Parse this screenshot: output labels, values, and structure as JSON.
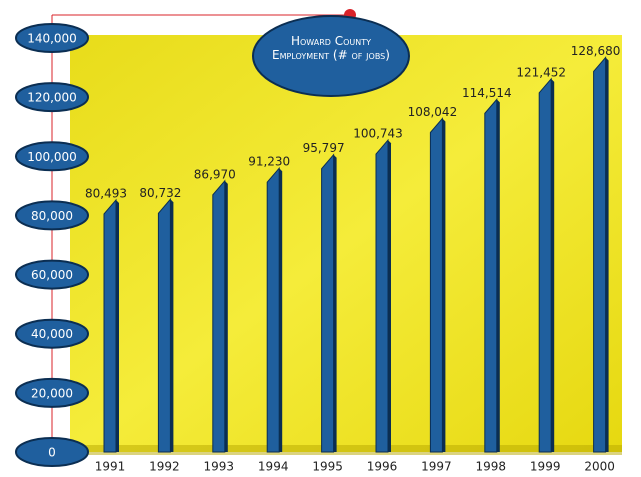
{
  "chart_data": {
    "type": "bar",
    "title": "Howard County Employment (# of jobs)",
    "categories": [
      "1991",
      "1992",
      "1993",
      "1994",
      "1995",
      "1996",
      "1997",
      "1998",
      "1999",
      "2000"
    ],
    "values": [
      80493,
      80732,
      86970,
      91230,
      95797,
      100743,
      108042,
      114514,
      121452,
      128680
    ],
    "value_labels": [
      "80,493",
      "80,732",
      "86,970",
      "91,230",
      "95,797",
      "100,743",
      "108,042",
      "114,514",
      "121,452",
      "128,680"
    ],
    "color": "#1f5f9e",
    "ylim": [
      0,
      140000
    ],
    "yticks": [
      0,
      {
        "value": 20000,
        "label": "20,000"
      },
      {
        "value": 40000,
        "label": "40,000"
      },
      {
        "value": 60000,
        "label": "60,000"
      },
      {
        "value": 80000,
        "label": "80,000"
      },
      {
        "value": 100000,
        "label": "100,000"
      },
      {
        "value": 120000,
        "label": "120,000"
      },
      {
        "value": 140000,
        "label": "140,000"
      }
    ]
  }
}
